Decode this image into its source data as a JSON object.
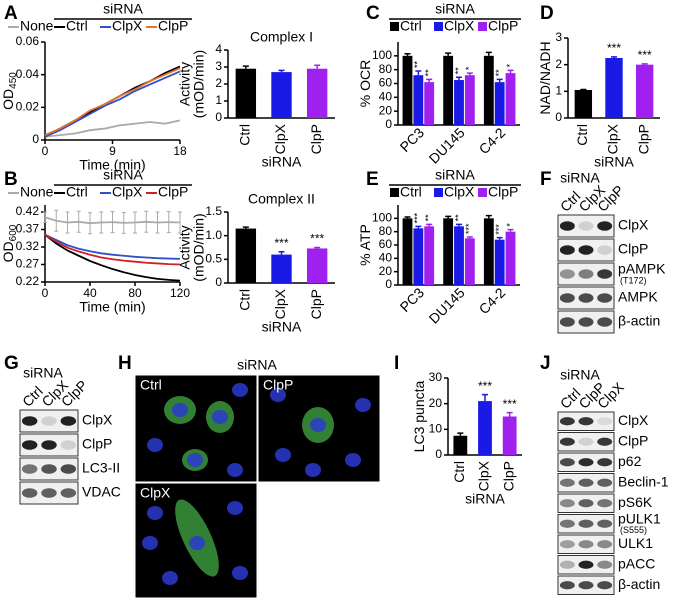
{
  "panel_labels": [
    "A",
    "B",
    "C",
    "D",
    "E",
    "F",
    "G",
    "H",
    "I",
    "J"
  ],
  "chart_data": [
    {
      "type": "line",
      "legend_title": "siRNA",
      "ylabel": "OD",
      "ylabel_sub": "450",
      "xlabel": "Time (min)",
      "x": [
        0,
        2,
        4,
        6,
        8,
        10,
        12,
        14,
        16,
        18
      ],
      "xlim": [
        0,
        18
      ],
      "xticks": [
        0,
        9,
        18
      ],
      "ylim": [
        0,
        0.06
      ],
      "yticks": [
        0,
        0.02,
        0.04,
        0.06
      ],
      "series": [
        {
          "name": "None",
          "color": "#aaaaaa",
          "values": [
            0.002,
            0.003,
            0.004,
            0.006,
            0.007,
            0.009,
            0.01,
            0.011,
            0.01,
            0.012
          ]
        },
        {
          "name": "Ctrl",
          "color": "#000000",
          "values": [
            0.002,
            0.007,
            0.012,
            0.017,
            0.022,
            0.027,
            0.032,
            0.036,
            0.041,
            0.045
          ]
        },
        {
          "name": "ClpX",
          "color": "#3050c8",
          "values": [
            0.002,
            0.006,
            0.011,
            0.016,
            0.021,
            0.025,
            0.03,
            0.034,
            0.038,
            0.042
          ]
        },
        {
          "name": "ClpP",
          "color": "#e8742a",
          "values": [
            0.003,
            0.007,
            0.012,
            0.018,
            0.022,
            0.027,
            0.031,
            0.036,
            0.04,
            0.044
          ]
        }
      ]
    },
    {
      "type": "bar",
      "title": "Complex I",
      "ylabel": [
        "Activity",
        "(mOD/min)"
      ],
      "xlabel": "siRNA",
      "categories": [
        "Ctrl",
        "ClpX",
        "ClpP"
      ],
      "values": [
        2.9,
        2.7,
        2.9
      ],
      "errors": [
        0.15,
        0.1,
        0.2
      ],
      "colors": [
        "#000000",
        "#1a1ae6",
        "#a020f0"
      ],
      "ylim": [
        0,
        4
      ],
      "yticks": [
        0,
        1,
        2,
        3,
        4
      ]
    },
    {
      "type": "bar",
      "legend_title": "siRNA",
      "ylabel": "% OCR",
      "categories": [
        "PC3",
        "DU145",
        "C4-2"
      ],
      "ylim": [
        0,
        120
      ],
      "yticks": [
        0,
        20,
        40,
        60,
        80,
        100
      ],
      "series": [
        {
          "name": "Ctrl",
          "color": "#000000",
          "values": [
            100,
            100,
            100
          ],
          "errors": [
            3,
            4,
            5
          ]
        },
        {
          "name": "ClpX",
          "color": "#1a1ae6",
          "values": [
            72,
            65,
            62
          ],
          "errors": [
            6,
            4,
            4
          ],
          "significance": [
            "**",
            "**",
            "**"
          ]
        },
        {
          "name": "ClpP",
          "color": "#a020f0",
          "values": [
            62,
            72,
            75
          ],
          "errors": [
            4,
            3,
            4
          ],
          "significance": [
            "**",
            "*",
            "*"
          ]
        }
      ]
    },
    {
      "type": "bar",
      "ylabel": "NAD/NADH",
      "xlabel": "siRNA",
      "categories": [
        "Ctrl",
        "ClpX",
        "ClpP"
      ],
      "values": [
        1.05,
        2.25,
        2.0
      ],
      "errors": [
        0.02,
        0.04,
        0.03
      ],
      "significance": [
        null,
        "***",
        "***"
      ],
      "colors": [
        "#000000",
        "#1a1ae6",
        "#a020f0"
      ],
      "ylim": [
        0,
        3
      ],
      "yticks": [
        0,
        1,
        2,
        3
      ]
    },
    {
      "type": "line",
      "legend_title": "siRNA",
      "ylabel": "OD",
      "ylabel_sub": "600",
      "xlabel": "Time (min)",
      "x": [
        0,
        10,
        20,
        30,
        40,
        50,
        60,
        70,
        80,
        90,
        100,
        110,
        120
      ],
      "xlim": [
        0,
        120
      ],
      "xticks": [
        0,
        40,
        80,
        120
      ],
      "ylim": [
        0.22,
        0.44
      ],
      "yticks": [
        0.22,
        0.27,
        0.32,
        0.37,
        0.42
      ],
      "series": [
        {
          "name": "None",
          "color": "#aaaaaa",
          "values": [
            0.405,
            0.395,
            0.39,
            0.392,
            0.388,
            0.39,
            0.391,
            0.389,
            0.39,
            0.392,
            0.39,
            0.391,
            0.39
          ],
          "errors": [
            0.015,
            0.03,
            0.03,
            0.03,
            0.03,
            0.03,
            0.03,
            0.03,
            0.03,
            0.03,
            0.03,
            0.03,
            0.03
          ]
        },
        {
          "name": "Ctrl",
          "color": "#000000",
          "values": [
            0.355,
            0.33,
            0.31,
            0.295,
            0.28,
            0.268,
            0.257,
            0.248,
            0.24,
            0.234,
            0.229,
            0.226,
            0.224
          ]
        },
        {
          "name": "ClpX",
          "color": "#3050c8",
          "values": [
            0.355,
            0.34,
            0.325,
            0.315,
            0.308,
            0.302,
            0.298,
            0.295,
            0.292,
            0.29,
            0.288,
            0.287,
            0.286
          ]
        },
        {
          "name": "ClpP",
          "color": "#d02020",
          "values": [
            0.355,
            0.335,
            0.318,
            0.307,
            0.298,
            0.29,
            0.285,
            0.281,
            0.278,
            0.275,
            0.273,
            0.271,
            0.27
          ]
        }
      ]
    },
    {
      "type": "bar",
      "title": "Complex II",
      "ylabel": [
        "Activity",
        "(mOD/min)"
      ],
      "xlabel": "siRNA",
      "categories": [
        "Ctrl",
        "ClpX",
        "ClpP"
      ],
      "values": [
        1.15,
        0.6,
        0.73
      ],
      "errors": [
        0.03,
        0.06,
        0.02
      ],
      "significance": [
        null,
        "***",
        "***"
      ],
      "colors": [
        "#000000",
        "#1a1ae6",
        "#a020f0"
      ],
      "ylim": [
        0,
        1.5
      ],
      "yticks": [
        0,
        0.5,
        {
          "value": 1,
          "label": "1.0"
        },
        1.5
      ]
    },
    {
      "type": "bar",
      "legend_title": "siRNA",
      "ylabel": "% ATP",
      "categories": [
        "PC3",
        "DU145",
        "C4-2"
      ],
      "ylim": [
        0,
        120
      ],
      "yticks": [
        0,
        20,
        40,
        60,
        80,
        100
      ],
      "series": [
        {
          "name": "Ctrl",
          "color": "#000000",
          "values": [
            100,
            100,
            100
          ],
          "errors": [
            2,
            3,
            4
          ]
        },
        {
          "name": "ClpX",
          "color": "#1a1ae6",
          "values": [
            85,
            88,
            68
          ],
          "errors": [
            3,
            3,
            3
          ],
          "significance": [
            "***",
            "**",
            "***"
          ]
        },
        {
          "name": "ClpP",
          "color": "#a020f0",
          "values": [
            88,
            70,
            80
          ],
          "errors": [
            3,
            2,
            3
          ],
          "significance": [
            "**",
            "***",
            "*"
          ]
        }
      ]
    },
    {
      "type": "bar",
      "ylabel": "LC3 puncta",
      "xlabel": "siRNA",
      "categories": [
        "Ctrl",
        "ClpX",
        "ClpP"
      ],
      "values": [
        7.5,
        21,
        15
      ],
      "errors": [
        1,
        2.5,
        1.5
      ],
      "significance": [
        null,
        "***",
        "***"
      ],
      "colors": [
        "#000000",
        "#1a1ae6",
        "#a020f0"
      ],
      "ylim": [
        0,
        30
      ],
      "yticks": [
        0,
        10,
        20,
        30
      ]
    }
  ],
  "blots": [
    {
      "header": "siRNA",
      "lanes": [
        "Ctrl",
        "ClpX",
        "ClpP"
      ],
      "rows": [
        {
          "label": "ClpX"
        },
        {
          "label": "ClpP"
        },
        {
          "label": "pAMPK",
          "note": "(T172)"
        },
        {
          "label": "AMPK"
        },
        {
          "label": "β-actin"
        }
      ]
    },
    {
      "header": "siRNA",
      "lanes": [
        "Ctrl",
        "ClpX",
        "ClpP"
      ],
      "rows": [
        {
          "label": "ClpX"
        },
        {
          "label": "ClpP"
        },
        {
          "label": "LC3-II"
        },
        {
          "label": "VDAC"
        }
      ]
    },
    {
      "header": "siRNA",
      "lanes": [
        "Ctrl",
        "ClpP",
        "ClpX"
      ],
      "rows": [
        {
          "label": "ClpX"
        },
        {
          "label": "ClpP"
        },
        {
          "label": "p62"
        },
        {
          "label": "Beclin-1"
        },
        {
          "label": "pS6K"
        },
        {
          "label": "pULK1",
          "note": "(S555)"
        },
        {
          "label": "ULK1"
        },
        {
          "label": "pACC"
        },
        {
          "label": "β-actin"
        }
      ]
    }
  ],
  "microscopy": {
    "header": "siRNA",
    "images": [
      "Ctrl",
      "ClpP",
      "ClpX"
    ]
  }
}
